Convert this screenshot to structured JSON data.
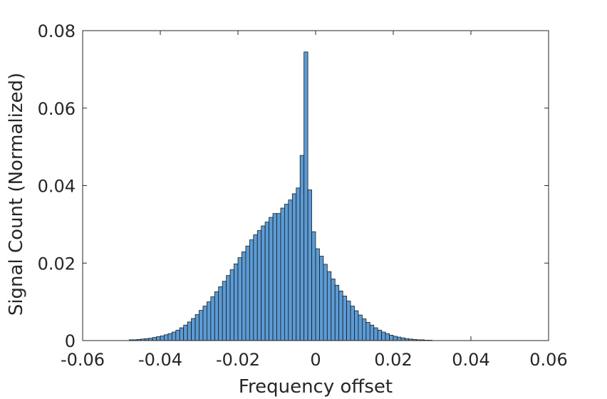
{
  "chart_data": {
    "type": "bar",
    "title": "",
    "xlabel": "Frequency offset",
    "ylabel": "Signal Count (Normalized)",
    "xlim": [
      -0.06,
      0.06
    ],
    "ylim": [
      0,
      0.08
    ],
    "xticks": [
      -0.06,
      -0.04,
      -0.02,
      0,
      0.02,
      0.04,
      0.06
    ],
    "xtick_labels": [
      "-0.06",
      "-0.04",
      "-0.02",
      "0",
      "0.02",
      "0.04",
      "0.06"
    ],
    "yticks": [
      0,
      0.02,
      0.04,
      0.06,
      0.08
    ],
    "ytick_labels": [
      "0",
      "0.02",
      "0.04",
      "0.06",
      "0.08"
    ],
    "grid": false,
    "bar_color": "#5b9bd5",
    "edge_color": "#1a1a1a",
    "bin_width": 0.001,
    "bin_start": -0.048,
    "values": [
      0.0002,
      0.0002,
      0.0003,
      0.0004,
      0.0005,
      0.0006,
      0.0008,
      0.001,
      0.0012,
      0.0015,
      0.0018,
      0.0022,
      0.0027,
      0.0033,
      0.004,
      0.0048,
      0.0057,
      0.0067,
      0.0078,
      0.0089,
      0.01,
      0.0113,
      0.0126,
      0.0139,
      0.0153,
      0.0168,
      0.0183,
      0.0198,
      0.0214,
      0.0229,
      0.0244,
      0.026,
      0.0273,
      0.0284,
      0.0296,
      0.0306,
      0.0318,
      0.0328,
      0.0328,
      0.0342,
      0.0352,
      0.0363,
      0.0379,
      0.0394,
      0.0478,
      0.0745,
      0.0389,
      0.0281,
      0.0237,
      0.0218,
      0.0197,
      0.0178,
      0.0159,
      0.0143,
      0.0128,
      0.0115,
      0.0102,
      0.0089,
      0.0077,
      0.0066,
      0.0056,
      0.0047,
      0.004,
      0.0033,
      0.0027,
      0.0022,
      0.0018,
      0.0014,
      0.0011,
      0.0009,
      0.0007,
      0.0005,
      0.0004,
      0.0003,
      0.0002,
      0.0002,
      0.0001,
      0.0001
    ]
  }
}
